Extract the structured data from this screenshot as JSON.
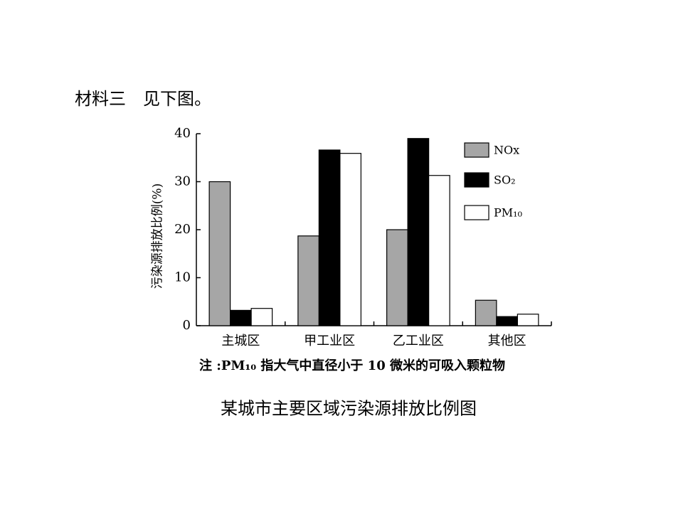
{
  "heading": "材料三　见下图。",
  "chart_data": {
    "type": "bar",
    "y_label": "污染源排放比例(%)",
    "categories": [
      "主城区",
      "甲工业区",
      "乙工业区",
      "其他区"
    ],
    "series": [
      {
        "name": "NOx",
        "color": "#a6a6a6",
        "values": [
          30,
          18.7,
          20,
          5.3
        ]
      },
      {
        "name": "SO₂",
        "color": "#000000",
        "values": [
          3.2,
          36.6,
          39,
          1.9
        ]
      },
      {
        "name": "PM₁₀",
        "color": "#ffffff",
        "values": [
          3.6,
          35.9,
          31.3,
          2.4
        ]
      }
    ],
    "ylim": [
      0,
      40
    ],
    "yticks": [
      0,
      10,
      20,
      30,
      40
    ],
    "legend": "upper right",
    "note": "注 :PM₁₀ 指大气中直径小于 10 微米的可吸入颗粒物",
    "caption": "某城市主要区域污染源排放比例图"
  }
}
